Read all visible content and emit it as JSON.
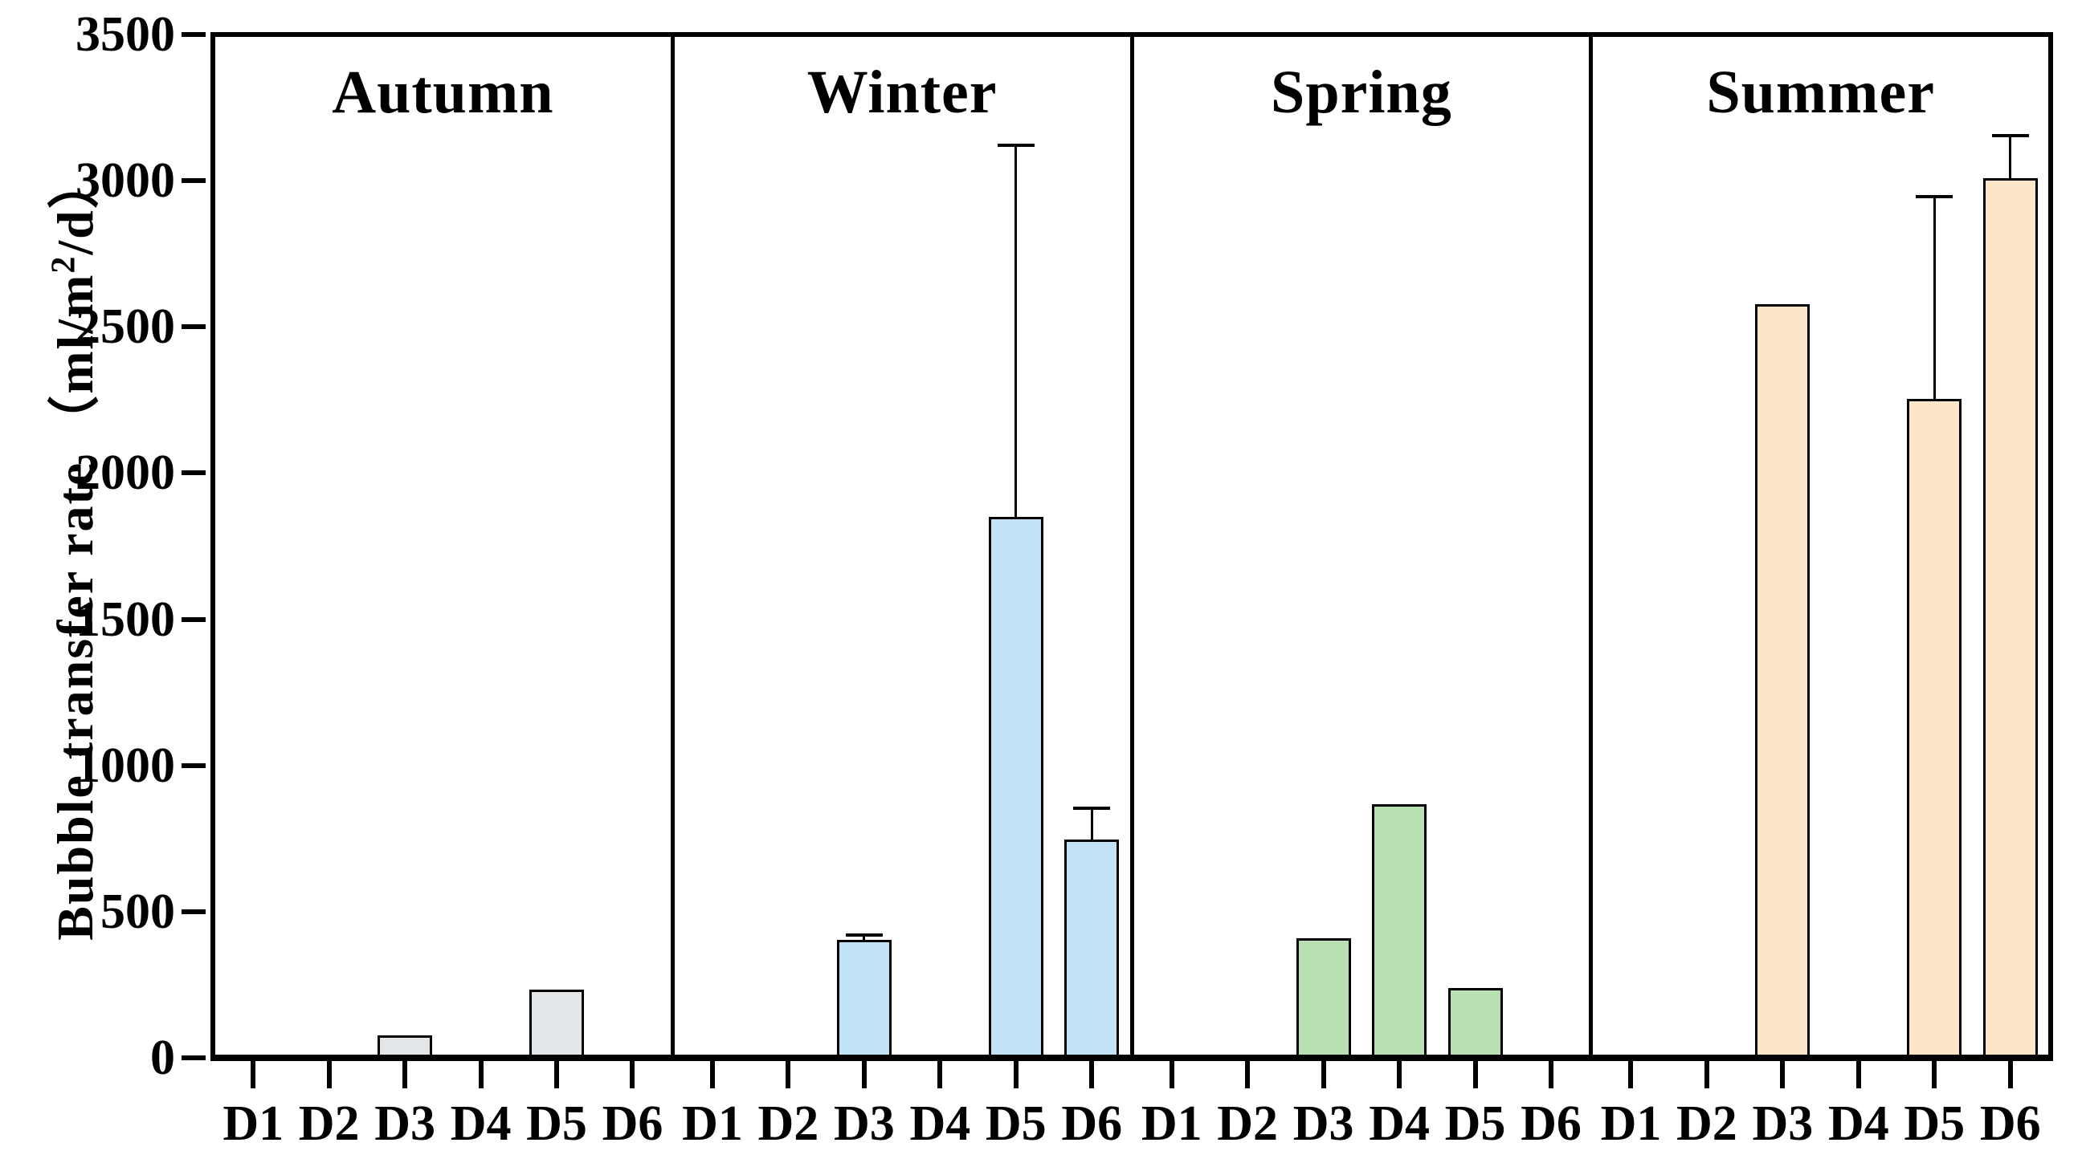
{
  "chart_data": {
    "type": "bar",
    "title": "",
    "xlabel": "",
    "ylabel": "Bubble transfer rate （ml/m²/d）",
    "y_axis": {
      "label_prefix": "Bubble transfer rate （ml/m",
      "label_sup": "2",
      "label_suffix": "/d）"
    },
    "ylim": [
      0,
      3500
    ],
    "ytick_step": 500,
    "yticks": [
      0,
      500,
      1000,
      1500,
      2000,
      2500,
      3000,
      3500
    ],
    "grid": false,
    "legend": "none",
    "sites": [
      "D1",
      "D2",
      "D3",
      "D4",
      "D5",
      "D6"
    ],
    "seasons": [
      {
        "name": "Autumn",
        "fill": "#e3e7e9",
        "values": [
          0,
          0,
          65,
          0,
          225,
          0
        ],
        "errors_plus": [
          0,
          0,
          0,
          0,
          0,
          0
        ]
      },
      {
        "name": "Winter",
        "fill": "#c0e3f6",
        "values": [
          0,
          0,
          395,
          0,
          1850,
          740
        ],
        "errors_plus": [
          0,
          0,
          25,
          0,
          1285,
          115
        ]
      },
      {
        "name": "Spring",
        "fill": "#b9e0b2",
        "values": [
          0,
          0,
          400,
          860,
          230,
          0
        ],
        "errors_plus": [
          0,
          0,
          0,
          0,
          0,
          0
        ]
      },
      {
        "name": "Summer",
        "fill": "#fde6c8",
        "values": [
          0,
          0,
          2580,
          0,
          2255,
          3015
        ],
        "errors_plus": [
          0,
          0,
          0,
          0,
          705,
          155
        ]
      }
    ],
    "colors": {
      "axis": "#000000",
      "bar_outline": "#000000",
      "background": "#ffffff"
    }
  }
}
